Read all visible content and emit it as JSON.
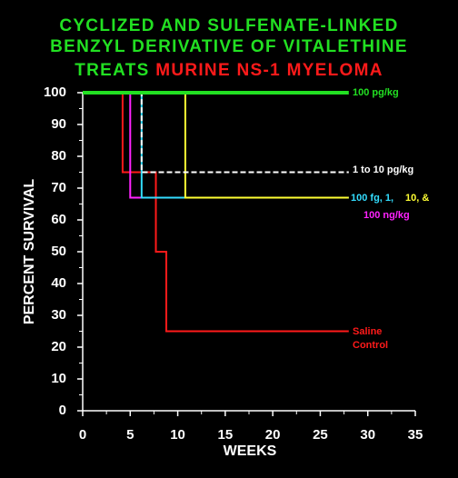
{
  "chart_data": {
    "type": "line",
    "step": "post",
    "title": [
      "CYCLIZED AND SULFENATE-LINKED",
      "BENZYL DERIVATIVE OF VITALETHINE",
      "TREATS"
    ],
    "title_highlight": "MURINE NS-1 MYELOMA",
    "title_color": "#22e022",
    "title_highlight_color": "#ff1a1a",
    "x_label": "WEEKS",
    "y_label": "PERCENT SURVIVAL",
    "xlim": [
      0,
      35
    ],
    "ylim": [
      0,
      100
    ],
    "xticks": [
      0,
      5,
      10,
      15,
      20,
      25,
      30,
      35
    ],
    "yticks": [
      0,
      10,
      20,
      30,
      40,
      50,
      60,
      70,
      80,
      90,
      100
    ],
    "xminorticks": [
      2.5,
      7.5,
      12.5,
      17.5,
      22.5,
      27.5,
      32.5
    ],
    "yminorticks": [
      5,
      15,
      25,
      35,
      45,
      55,
      65,
      75,
      85,
      95
    ],
    "series": [
      {
        "name": "Saline Control",
        "color": "#ff1a1a",
        "x": [
          0,
          4.2,
          7.7,
          8.8,
          28
        ],
        "values": [
          100,
          75,
          50,
          25,
          25
        ]
      },
      {
        "name": "100 ng/kg",
        "color": "#ff22ff",
        "x": [
          0,
          5,
          20.8
        ],
        "values": [
          100,
          67,
          67
        ]
      },
      {
        "name": "100 fg, 1,",
        "color": "#33ddff",
        "x": [
          0,
          6.2,
          28
        ],
        "values": [
          100,
          67,
          67
        ]
      },
      {
        "name": "10, &",
        "color": "#ffff33",
        "x": [
          0,
          10.8,
          28
        ],
        "values": [
          100,
          67,
          67
        ]
      },
      {
        "name": "1 to 10 pg/kg",
        "color": "#ffffff",
        "dash": true,
        "x": [
          0,
          6.2,
          28
        ],
        "values": [
          100,
          75,
          75
        ]
      },
      {
        "name": "100 pg/kg",
        "color": "#22e022",
        "thick": true,
        "x": [
          0,
          28
        ],
        "values": [
          100,
          100
        ]
      }
    ]
  }
}
